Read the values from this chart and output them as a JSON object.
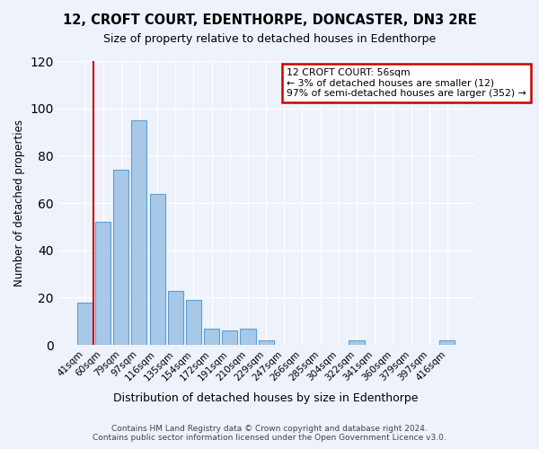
{
  "title": "12, CROFT COURT, EDENTHORPE, DONCASTER, DN3 2RE",
  "subtitle": "Size of property relative to detached houses in Edenthorpe",
  "xlabel": "Distribution of detached houses by size in Edenthorpe",
  "ylabel": "Number of detached properties",
  "bar_labels": [
    "41sqm",
    "60sqm",
    "79sqm",
    "97sqm",
    "116sqm",
    "135sqm",
    "154sqm",
    "172sqm",
    "191sqm",
    "210sqm",
    "229sqm",
    "247sqm",
    "266sqm",
    "285sqm",
    "304sqm",
    "322sqm",
    "341sqm",
    "360sqm",
    "379sqm",
    "397sqm",
    "416sqm"
  ],
  "bar_values": [
    18,
    52,
    74,
    95,
    64,
    23,
    19,
    7,
    6,
    7,
    2,
    0,
    0,
    0,
    0,
    2,
    0,
    0,
    0,
    0,
    2
  ],
  "bar_color": "#a8c8e8",
  "bar_edge_color": "#5a9fd4",
  "marker_label": "12 CROFT COURT: 56sqm",
  "annotation_line1": "← 3% of detached houses are smaller (12)",
  "annotation_line2": "97% of semi-detached houses are larger (352) →",
  "annotation_box_color": "#ffffff",
  "annotation_box_edge": "#cc0000",
  "marker_line_color": "#cc0000",
  "ylim": [
    0,
    120
  ],
  "yticks": [
    0,
    20,
    40,
    60,
    80,
    100,
    120
  ],
  "footer_line1": "Contains HM Land Registry data © Crown copyright and database right 2024.",
  "footer_line2": "Contains public sector information licensed under the Open Government Licence v3.0.",
  "bg_color": "#eef2fb"
}
